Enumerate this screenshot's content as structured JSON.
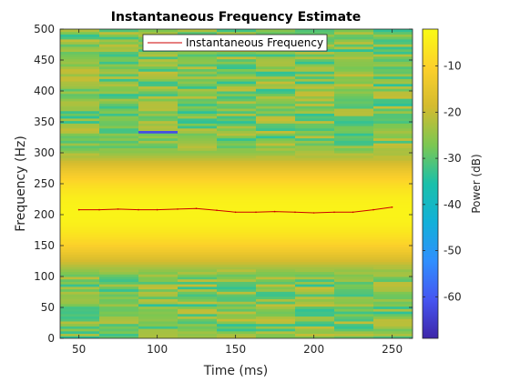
{
  "chart_data": {
    "type": "heatmap",
    "title": "Instantaneous Frequency Estimate",
    "xlabel": "Time (ms)",
    "ylabel": "Frequency (Hz)",
    "xlim": [
      38,
      263
    ],
    "ylim": [
      0,
      500
    ],
    "xticks": [
      50,
      100,
      150,
      200,
      250
    ],
    "yticks": [
      0,
      50,
      100,
      150,
      200,
      250,
      300,
      350,
      400,
      450,
      500
    ],
    "time_bins_ms": [
      38,
      63,
      88,
      113,
      138,
      163,
      188,
      213,
      238,
      263
    ],
    "colorbar": {
      "label": "Power (dB)",
      "limits": [
        -69,
        -2
      ],
      "ticks": [
        -60,
        -50,
        -40,
        -30,
        -20,
        -10
      ]
    },
    "legend": {
      "entries": [
        "Instantaneous Frequency"
      ],
      "placement": "top"
    },
    "series": [
      {
        "name": "Instantaneous Frequency",
        "color": "#cc0000",
        "x": [
          50,
          63,
          75,
          88,
          100,
          113,
          125,
          138,
          150,
          163,
          175,
          188,
          200,
          213,
          225,
          238,
          250
        ],
        "y": [
          208,
          208,
          209,
          208,
          208,
          209,
          210,
          207,
          204,
          204,
          205,
          204,
          203,
          204,
          204,
          208,
          212
        ]
      }
    ],
    "features": [
      {
        "desc": "dark line",
        "t_range": [
          88,
          113
        ],
        "f": 334,
        "db": -62
      }
    ]
  }
}
